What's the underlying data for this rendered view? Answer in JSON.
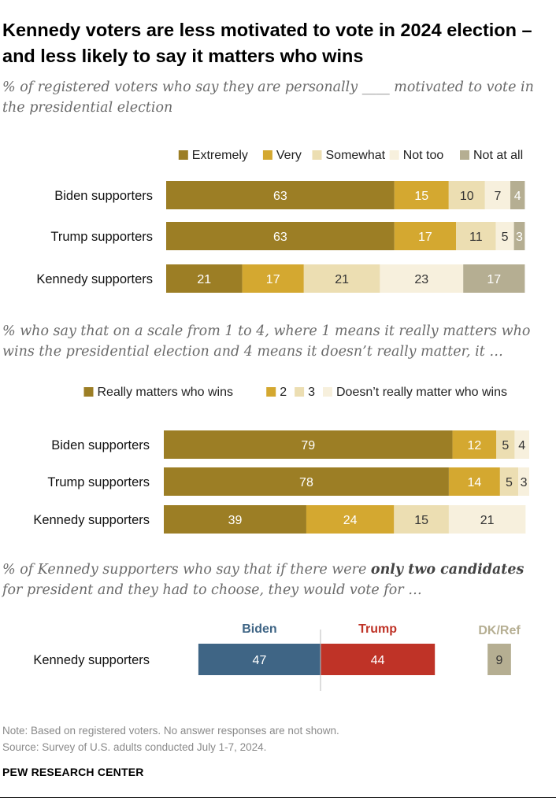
{
  "title": "Kennedy voters are less motivated to vote in 2024 election – and less likely to say it matters who wins",
  "charts": [
    {
      "subtitle": "% of registered voters who say they are personally ____ motivated to vote in the presidential election"
    },
    {
      "subtitle": "% who say that on a scale from 1 to 4, where 1 means it really matters who wins the presidential election and 4 means it doesn’t really matter, it …"
    },
    {
      "subtitle_pre": "% of Kennedy supporters who say that if there were ",
      "subtitle_bold": "only two candidates",
      "subtitle_post": " for president and they had to choose, they would vote for …"
    }
  ],
  "chart_data": [
    {
      "type": "bar",
      "orientation": "horizontal-stacked",
      "title": "% of registered voters who say they are personally ____ motivated to vote in the presidential election",
      "categories": [
        "Biden supporters",
        "Trump supporters",
        "Kennedy supporters"
      ],
      "series": [
        {
          "name": "Extremely",
          "color": "#9c7e25",
          "values": [
            63,
            63,
            21
          ]
        },
        {
          "name": "Very",
          "color": "#d4a830",
          "values": [
            15,
            17,
            17
          ]
        },
        {
          "name": "Somewhat",
          "color": "#ecdeb2",
          "values": [
            10,
            11,
            21
          ]
        },
        {
          "name": "Not too",
          "color": "#f7f0dd",
          "values": [
            7,
            5,
            23
          ]
        },
        {
          "name": "Not at all",
          "color": "#b5ae92",
          "values": [
            4,
            3,
            17
          ]
        }
      ],
      "xlim": [
        0,
        100
      ],
      "legend": "top-right"
    },
    {
      "type": "bar",
      "orientation": "horizontal-stacked",
      "title": "% who say that on a scale from 1 to 4, where 1 means it really matters who wins the presidential election and 4 means it doesn't really matter, it ...",
      "categories": [
        "Biden supporters",
        "Trump supporters",
        "Kennedy supporters"
      ],
      "series": [
        {
          "name": "Really matters who wins",
          "color": "#9c7e25",
          "values": [
            79,
            78,
            39
          ]
        },
        {
          "name": "2",
          "color": "#d4a830",
          "values": [
            12,
            14,
            24
          ]
        },
        {
          "name": "3",
          "color": "#ecdeb2",
          "values": [
            5,
            5,
            15
          ]
        },
        {
          "name": "Doesn’t really matter who wins",
          "color": "#f7f0dd",
          "values": [
            4,
            3,
            21
          ]
        }
      ],
      "xlim": [
        0,
        100
      ],
      "legend": "top-right"
    },
    {
      "type": "bar",
      "orientation": "horizontal-diverging",
      "title": "% of Kennedy supporters who say that if there were only two candidates for president and they had to choose, they would vote for ...",
      "categories": [
        "Kennedy supporters"
      ],
      "series": [
        {
          "name": "Biden",
          "color": "#3f6585",
          "values": [
            47
          ]
        },
        {
          "name": "Trump",
          "color": "#bf3327",
          "values": [
            44
          ]
        },
        {
          "name": "DK/Ref",
          "color": "#b5ae92",
          "values": [
            9
          ]
        }
      ]
    }
  ],
  "footer": {
    "note": "Note: Based on registered voters. No answer responses are not shown.",
    "source": "Source: Survey of U.S. adults conducted July 1-7, 2024.",
    "org": "PEW RESEARCH CENTER"
  }
}
